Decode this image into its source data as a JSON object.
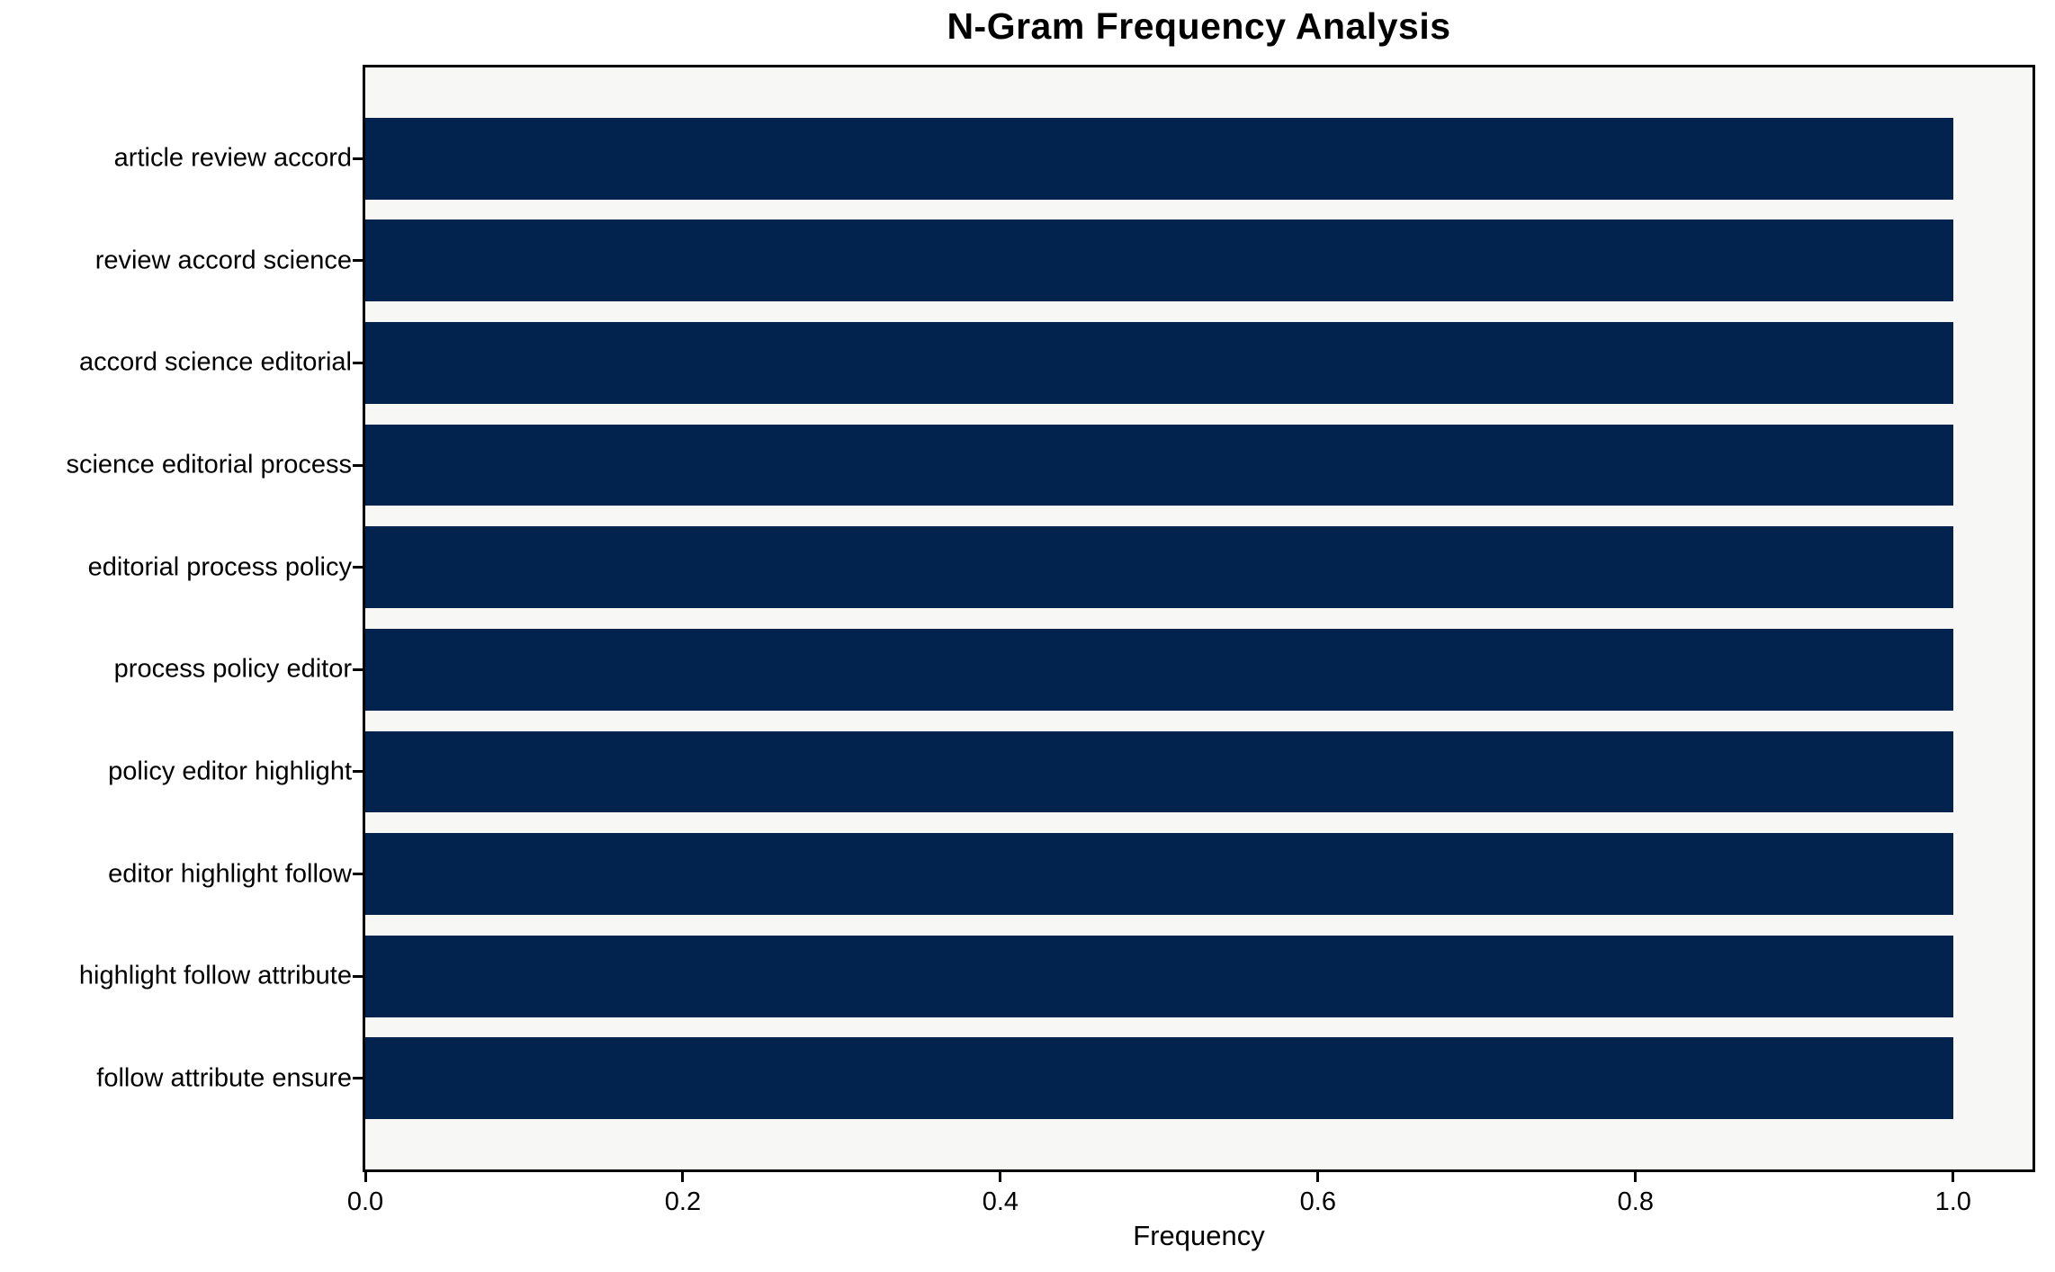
{
  "chart_data": {
    "type": "bar",
    "orientation": "horizontal",
    "title": "N-Gram Frequency Analysis",
    "xlabel": "Frequency",
    "ylabel": "",
    "categories": [
      "article review accord",
      "review accord science",
      "accord science editorial",
      "science editorial process",
      "editorial process policy",
      "process policy editor",
      "policy editor highlight",
      "editor highlight follow",
      "highlight follow attribute",
      "follow attribute ensure"
    ],
    "values": [
      1.0,
      1.0,
      1.0,
      1.0,
      1.0,
      1.0,
      1.0,
      1.0,
      1.0,
      1.0
    ],
    "xlim": [
      0,
      1.05
    ],
    "xticks": [
      0.0,
      0.2,
      0.4,
      0.6,
      0.8,
      1.0
    ],
    "xtick_labels": [
      "0.0",
      "0.2",
      "0.4",
      "0.6",
      "0.8",
      "1.0"
    ],
    "bar_color": "#02234d",
    "plot_background": "#f7f7f6",
    "bar_height_ratio": 0.8,
    "grid": false,
    "legend": null
  }
}
